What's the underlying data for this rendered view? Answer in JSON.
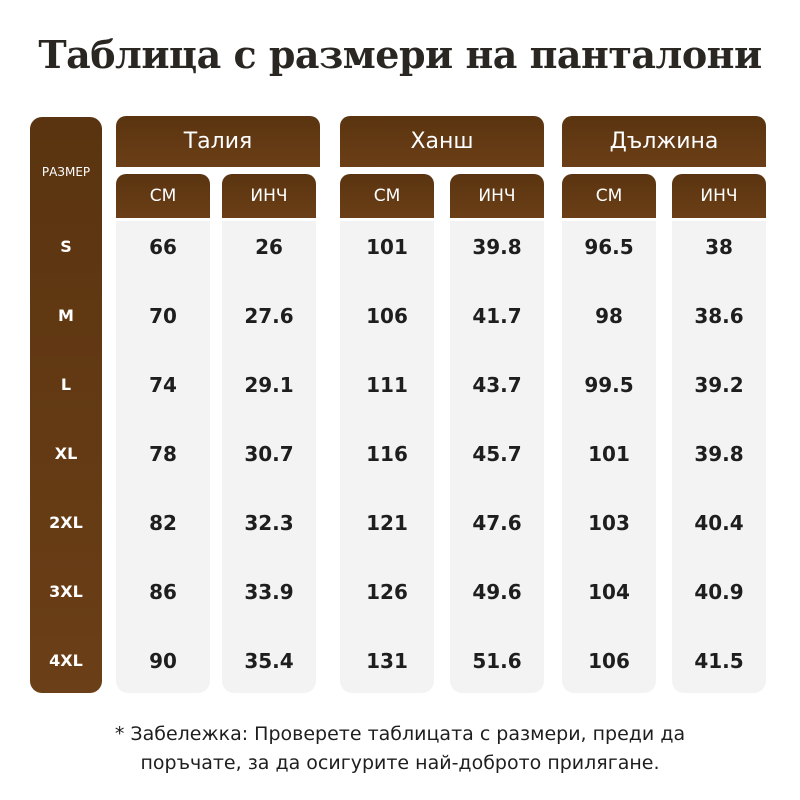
{
  "title": "Таблица с размери на панталони",
  "size_header": "РАЗМЕР",
  "sizes": [
    "S",
    "M",
    "L",
    "XL",
    "2XL",
    "3XL",
    "4XL"
  ],
  "groups": [
    {
      "name": "Талия",
      "units": [
        "СМ",
        "ИНЧ"
      ]
    },
    {
      "name": "Ханш",
      "units": [
        "СМ",
        "ИНЧ"
      ]
    },
    {
      "name": "Дължина",
      "units": [
        "СМ",
        "ИНЧ"
      ]
    }
  ],
  "columns": [
    [
      "66",
      "70",
      "74",
      "78",
      "82",
      "86",
      "90"
    ],
    [
      "26",
      "27.6",
      "29.1",
      "30.7",
      "32.3",
      "33.9",
      "35.4"
    ],
    [
      "101",
      "106",
      "111",
      "116",
      "121",
      "126",
      "131"
    ],
    [
      "39.8",
      "41.7",
      "43.7",
      "45.7",
      "47.6",
      "49.6",
      "51.6"
    ],
    [
      "96.5",
      "98",
      "99.5",
      "101",
      "103",
      "104",
      "106"
    ],
    [
      "38",
      "38.6",
      "39.2",
      "39.8",
      "40.4",
      "40.9",
      "41.5"
    ]
  ],
  "note": {
    "line1": "* Забележка: Проверете таблицата с размери, преди да",
    "line2": "поръчате, за да осигурите най-доброто прилягане."
  },
  "colors": {
    "header_brown": "#5e3812",
    "cell_background": "#f4f3f3",
    "text_dark": "#1e1e1e"
  }
}
